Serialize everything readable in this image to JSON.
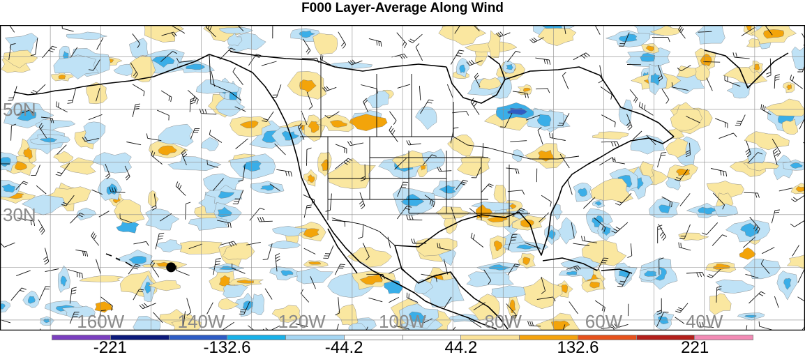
{
  "title": "F000 Layer-Average Along Wind",
  "map": {
    "projection": "cylindrical",
    "lon_range": [
      -180,
      -20
    ],
    "lat_range": [
      8,
      66
    ],
    "grid": true,
    "lat_labels": [
      "50N",
      "30N"
    ],
    "lon_labels": [
      "160W",
      "140W",
      "120W",
      "100W",
      "80W",
      "60W",
      "40W"
    ],
    "marker": {
      "lon": -146,
      "lat": 20
    },
    "colors": {
      "pos_light": "#fae7a0",
      "pos_mid": "#f3a40a",
      "neg_light": "#bfe2f6",
      "neg_mid": "#3aaee8",
      "neg_dark": "#2e5cc4",
      "coast": "#000000",
      "grid": "#8a8a8a"
    }
  },
  "legend": {
    "colors": [
      "#7b3fbf",
      "#0c1a7a",
      "#2e5cc4",
      "#19b1e8",
      "#a6d6f2",
      "#ffffff",
      "#ffffff",
      "#fae29a",
      "#f4a20d",
      "#e6521c",
      "#b3201c",
      "#f28bb5"
    ],
    "labels": [
      "-221",
      "-132.6",
      "-44.2",
      "44.2",
      "132.6",
      "221"
    ]
  }
}
